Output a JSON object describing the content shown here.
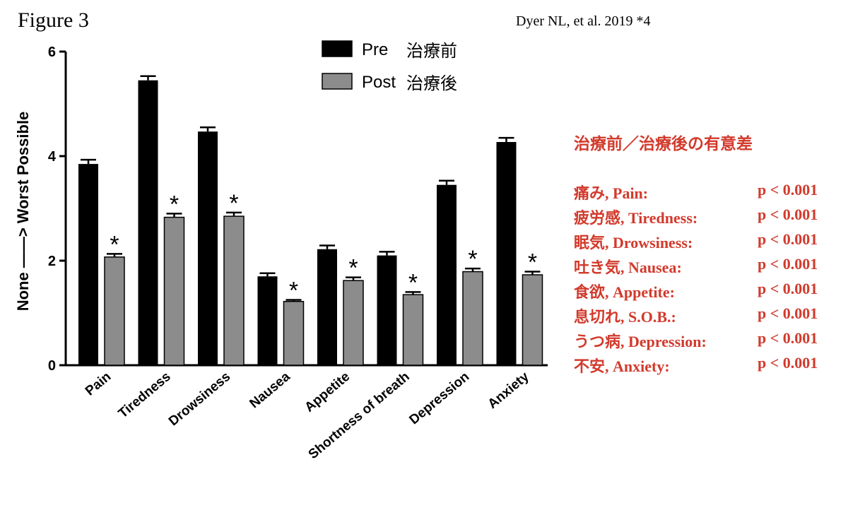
{
  "figure_label": "Figure 3",
  "citation": "Dyer NL, et al. 2019 *4",
  "chart_data": {
    "type": "bar",
    "categories": [
      "Pain",
      "Tiredness",
      "Drowsiness",
      "Nausea",
      "Appetite",
      "Shortness of breath",
      "Depression",
      "Anxiety"
    ],
    "series": [
      {
        "name": "Pre",
        "name_jp": "治療前",
        "color": "#000000",
        "values": [
          3.85,
          5.45,
          4.47,
          1.7,
          2.22,
          2.1,
          3.45,
          4.27
        ],
        "errors": [
          0.08,
          0.08,
          0.08,
          0.06,
          0.07,
          0.07,
          0.08,
          0.08
        ]
      },
      {
        "name": "Post",
        "name_jp": "治療後",
        "color": "#8c8c8c",
        "values": [
          2.07,
          2.83,
          2.85,
          1.22,
          1.62,
          1.35,
          1.79,
          1.73
        ],
        "errors": [
          0.06,
          0.07,
          0.07,
          0.03,
          0.06,
          0.05,
          0.06,
          0.06
        ]
      }
    ],
    "significance_marker": "*",
    "ylabel": "None ——> Worst Possible",
    "xlabel": "",
    "ylim": [
      0,
      6
    ],
    "yticks": [
      "0",
      "2",
      "4",
      "6"
    ],
    "grid": false,
    "legend": "top-center"
  },
  "annotation": {
    "title": "治療前／治療後の有意差",
    "color": "#d23a2c",
    "rows": [
      {
        "label": "痛み, Pain:",
        "value": "p < 0.001"
      },
      {
        "label": "疲労感, Tiredness:",
        "value": "p < 0.001"
      },
      {
        "label": "眠気, Drowsiness:",
        "value": "p < 0.001"
      },
      {
        "label": "吐き気, Nausea:",
        "value": "p < 0.001"
      },
      {
        "label": "食欲, Appetite:",
        "value": "p < 0.001"
      },
      {
        "label": "息切れ, S.O.B.:",
        "value": "p < 0.001"
      },
      {
        "label": "うつ病, Depression:",
        "value": "p < 0.001"
      },
      {
        "label": "不安, Anxiety:",
        "value": "p < 0.001"
      }
    ]
  }
}
